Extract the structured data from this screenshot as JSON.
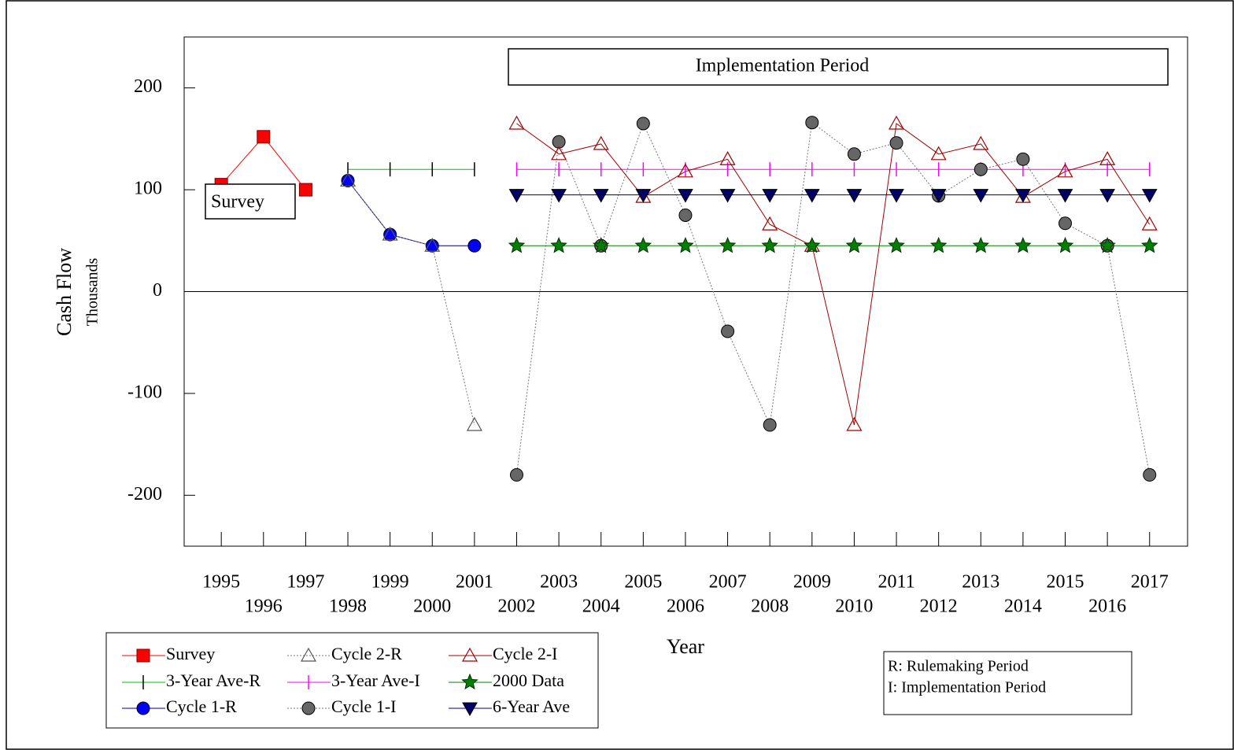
{
  "chart_data": {
    "type": "line",
    "xlabel": "Year",
    "ylabel": "Cash Flow",
    "ylabel2": "Thousands",
    "annotations": [
      "Implementation Period",
      "Survey"
    ],
    "notes": [
      "R:  Rulemaking Period",
      "I:  Implementation Period"
    ],
    "xlim": [
      1994.12,
      2017.9
    ],
    "xticks": [
      1995,
      1996,
      1997,
      1998,
      1999,
      2000,
      2001,
      2002,
      2003,
      2004,
      2005,
      2006,
      2007,
      2008,
      2009,
      2010,
      2011,
      2012,
      2013,
      2014,
      2015,
      2016,
      2017
    ],
    "ylim": [
      -250,
      250
    ],
    "yticks": [
      -200,
      -100,
      0,
      100,
      200
    ],
    "series": [
      {
        "name": "Survey",
        "color": "#ff0000",
        "line_color": "#ff0000",
        "marker": "square",
        "dash": "solid",
        "x": [
          1995,
          1996,
          1997
        ],
        "values": [
          105,
          152,
          100
        ]
      },
      {
        "name": "3-Year Ave-R",
        "color": "#000000",
        "line_color": "#00c000",
        "marker": "tick",
        "dash": "solid",
        "x": [
          1998,
          1999,
          2000,
          2001
        ],
        "values": [
          120,
          120,
          120,
          120
        ]
      },
      {
        "name": "Cycle 1-R",
        "color": "#0000ff",
        "line_color": "#000080",
        "marker": "circle",
        "dash": "solid",
        "x": [
          1998,
          1999,
          2000,
          2001
        ],
        "values": [
          109,
          56,
          45,
          45
        ]
      },
      {
        "name": "Cycle 2-R",
        "color": "#555555",
        "line_color": "#777777",
        "marker": "triangle-open",
        "dash": "dotted",
        "x": [
          1998,
          1999,
          2000,
          2001
        ],
        "values": [
          109,
          56,
          45,
          -131
        ]
      },
      {
        "name": "3-Year Ave-I",
        "color": "#ff00ff",
        "line_color": "#ff00ff",
        "marker": "tick",
        "dash": "solid",
        "x": [
          2002,
          2003,
          2004,
          2005,
          2006,
          2007,
          2008,
          2009,
          2010,
          2011,
          2012,
          2013,
          2014,
          2015,
          2016,
          2017
        ],
        "values": [
          120,
          120,
          120,
          120,
          120,
          120,
          120,
          120,
          120,
          120,
          120,
          120,
          120,
          120,
          120,
          120
        ]
      },
      {
        "name": "Cycle 1-I",
        "color": "#666666",
        "line_color": "#777777",
        "marker": "circle",
        "dash": "dotted",
        "x": [
          2002,
          2003,
          2004,
          2005,
          2006,
          2007,
          2008,
          2009,
          2010,
          2011,
          2012,
          2013,
          2014,
          2015,
          2016,
          2017
        ],
        "values": [
          -180,
          147,
          45,
          165,
          75,
          -39,
          -131,
          166,
          135,
          146,
          94,
          120,
          130,
          67,
          45,
          -180
        ]
      },
      {
        "name": "Cycle 2-I",
        "color": "#a00000",
        "line_color": "#a00000",
        "marker": "triangle-open",
        "dash": "solid",
        "x": [
          2002,
          2003,
          2004,
          2005,
          2006,
          2007,
          2008,
          2009,
          2010,
          2011,
          2012,
          2013,
          2014,
          2015,
          2016,
          2017
        ],
        "values": [
          165,
          135,
          145,
          93,
          118,
          130,
          66,
          45,
          -131,
          165,
          135,
          145,
          93,
          118,
          130,
          66
        ]
      },
      {
        "name": "2000 Data",
        "color": "#008000",
        "line_color": "#008000",
        "marker": "star",
        "dash": "solid",
        "x": [
          2002,
          2003,
          2004,
          2005,
          2006,
          2007,
          2008,
          2009,
          2010,
          2011,
          2012,
          2013,
          2014,
          2015,
          2016,
          2017
        ],
        "values": [
          45,
          45,
          45,
          45,
          45,
          45,
          45,
          45,
          45,
          45,
          45,
          45,
          45,
          45,
          45,
          45
        ]
      },
      {
        "name": "6-Year Ave",
        "color": "#000066",
        "line_color": "#000066",
        "marker": "triangle-down",
        "dash": "solid",
        "x": [
          2002,
          2003,
          2004,
          2005,
          2006,
          2007,
          2008,
          2009,
          2010,
          2011,
          2012,
          2013,
          2014,
          2015,
          2016,
          2017
        ],
        "values": [
          95,
          95,
          95,
          95,
          95,
          95,
          95,
          95,
          95,
          95,
          95,
          95,
          95,
          95,
          95,
          95
        ]
      }
    ]
  }
}
